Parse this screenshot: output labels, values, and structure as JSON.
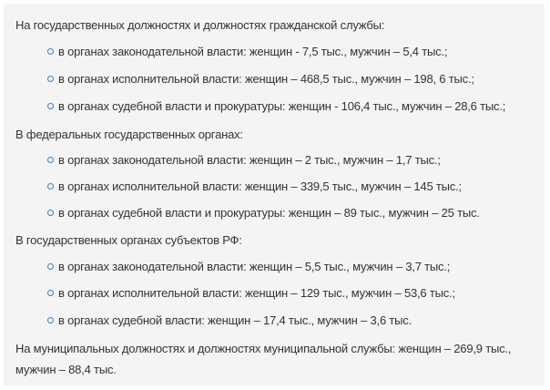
{
  "sections": [
    {
      "heading": "На государственных должностях и должностях гражданской службы:",
      "items": [
        "в органах законодательной власти: женщин - 7,5 тыс., мужчин – 5,4 тыс.;",
        "в органах исполнительной власти: женщин – 468,5 тыс., мужчин – 198, 6 тыс.;",
        "в органах судебной власти и прокуратуры: женщин - 106,4 тыс., мужчин – 28,6 тыс.;"
      ]
    },
    {
      "heading": "В федеральных государственных органах:",
      "items": [
        "в органах законодательной власти: женщин – 2 тыс., мужчин – 1,7 тыс.;",
        "в органах исполнительной власти: женщин – 339,5 тыс., мужчин – 145 тыс.;",
        "в органах судебной власти и прокуратуры: женщин – 89 тыс., мужчин – 25 тыс."
      ]
    },
    {
      "heading": "В государственных органах субъектов РФ:",
      "items": [
        "в органах законодательной власти: женщин – 5,5 тыс., мужчин – 3,7 тыс.;",
        "в органах исполнительной власти: женщин – 129 тыс., мужчин – 53,6 тыс.;",
        "в органах судебной власти: женщин – 17,4 тыс., мужчин – 3,6 тыс."
      ]
    }
  ],
  "final_paragraph": "На муниципальных должностях и должностях муниципальной службы: женщин – 269,9 тыс., мужчин – 88,4 тыс.",
  "colors": {
    "bullet": "#3a7fc4",
    "panel": "#f4f4f4",
    "text": "#333333"
  },
  "bullet_icon": "hollow-circle-bullet"
}
